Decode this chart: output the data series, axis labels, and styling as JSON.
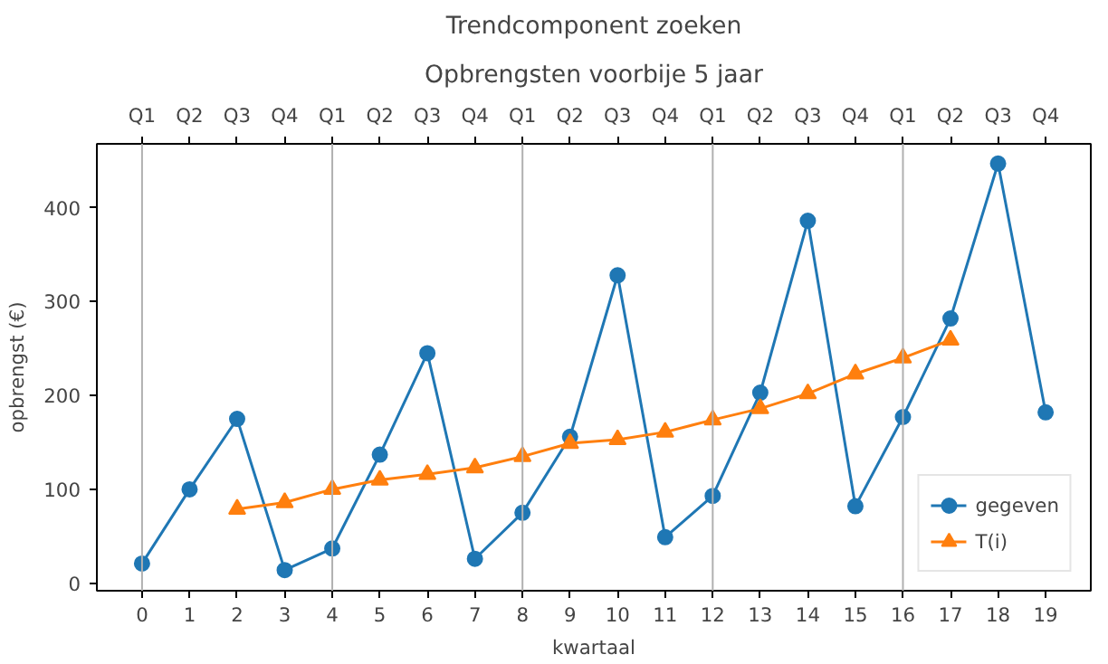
{
  "chart_data": {
    "type": "line",
    "title": "Trendcomponent zoeken",
    "subtitle": "Opbrengsten voorbije 5 jaar",
    "xlabel": "kwartaal",
    "ylabel": "opbrengst (€)",
    "x": [
      0,
      1,
      2,
      3,
      4,
      5,
      6,
      7,
      8,
      9,
      10,
      11,
      12,
      13,
      14,
      15,
      16,
      17,
      18,
      19
    ],
    "series": [
      {
        "name": "gegeven",
        "color": "#1f77b4",
        "marker": "circle",
        "values": [
          21,
          100,
          175,
          14,
          37,
          137,
          245,
          26,
          75,
          156,
          328,
          49,
          93,
          203,
          386,
          82,
          177,
          282,
          447,
          182
        ]
      },
      {
        "name": "T(i)",
        "color": "#ff7f0e",
        "marker": "triangle",
        "x": [
          2,
          3,
          4,
          5,
          6,
          7,
          8,
          9,
          10,
          11,
          12,
          13,
          14,
          15,
          16,
          17
        ],
        "values": [
          79,
          86,
          100,
          110,
          116,
          123,
          135,
          149,
          153,
          161,
          174,
          186,
          202,
          223,
          240,
          259
        ]
      }
    ],
    "xlim": [
      -0.95,
      19.95
    ],
    "ylim": [
      -8,
      468
    ],
    "xticks": [
      0,
      1,
      2,
      3,
      4,
      5,
      6,
      7,
      8,
      9,
      10,
      11,
      12,
      13,
      14,
      15,
      16,
      17,
      18,
      19
    ],
    "yticks": [
      0,
      100,
      200,
      300,
      400
    ],
    "annotations": [
      {
        "text": "Q1",
        "x": 0
      },
      {
        "text": "Q2",
        "x": 1
      },
      {
        "text": "Q3",
        "x": 2
      },
      {
        "text": "Q4",
        "x": 3
      },
      {
        "text": "Q1",
        "x": 4
      },
      {
        "text": "Q2",
        "x": 5
      },
      {
        "text": "Q3",
        "x": 6
      },
      {
        "text": "Q4",
        "x": 7
      },
      {
        "text": "Q1",
        "x": 8
      },
      {
        "text": "Q2",
        "x": 9
      },
      {
        "text": "Q3",
        "x": 10
      },
      {
        "text": "Q4",
        "x": 11
      },
      {
        "text": "Q1",
        "x": 12
      },
      {
        "text": "Q2",
        "x": 13
      },
      {
        "text": "Q3",
        "x": 14
      },
      {
        "text": "Q4",
        "x": 15
      },
      {
        "text": "Q1",
        "x": 16
      },
      {
        "text": "Q2",
        "x": 17
      },
      {
        "text": "Q3",
        "x": 18
      },
      {
        "text": "Q4",
        "x": 19
      }
    ],
    "ref_lines": [
      {
        "axis": "x",
        "value": 0,
        "label": null,
        "color": "#b0b0b0"
      },
      {
        "axis": "x",
        "value": 4,
        "label": null,
        "color": "#b0b0b0"
      },
      {
        "axis": "x",
        "value": 8,
        "label": null,
        "color": "#b0b0b0"
      },
      {
        "axis": "x",
        "value": 12,
        "label": null,
        "color": "#b0b0b0"
      },
      {
        "axis": "x",
        "value": 16,
        "label": null,
        "color": "#b0b0b0"
      }
    ],
    "legend": "bottom right",
    "grid": false,
    "line_style": "solid"
  }
}
